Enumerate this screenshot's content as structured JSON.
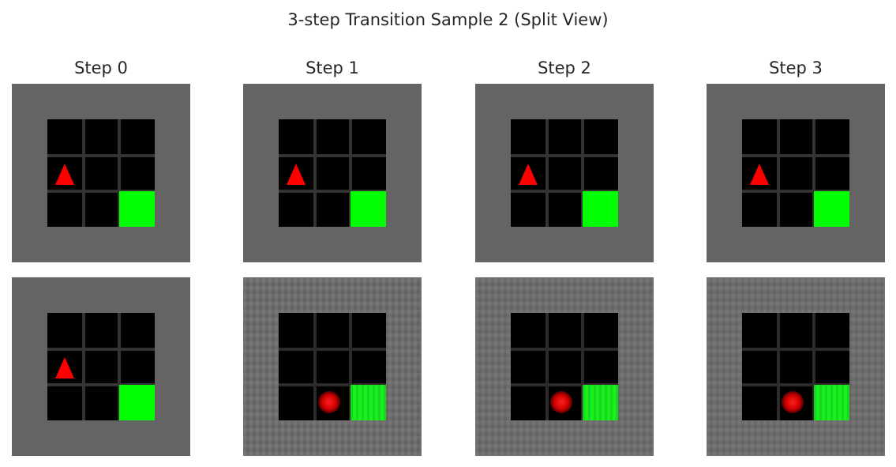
{
  "figure": {
    "title": "3-step Transition Sample 2 (Split View)"
  },
  "columns": [
    {
      "label": "Step 0"
    },
    {
      "label": "Step 1"
    },
    {
      "label": "Step 2"
    },
    {
      "label": "Step 3"
    }
  ],
  "rows": [
    {
      "kind": "ground-truth",
      "agent": "triangle",
      "agent_cell": [
        0,
        1
      ],
      "goal_cell": [
        2,
        2
      ]
    },
    {
      "kind": "predicted",
      "agent": "blob",
      "agent_cell": [
        1,
        2
      ],
      "goal_cell": [
        2,
        2
      ]
    }
  ],
  "grid": {
    "size": 3
  },
  "colors": {
    "background": "#646464",
    "board": "#000000",
    "grid_lines": "#333333",
    "agent": "#ff0000",
    "goal": "#00ff00"
  }
}
